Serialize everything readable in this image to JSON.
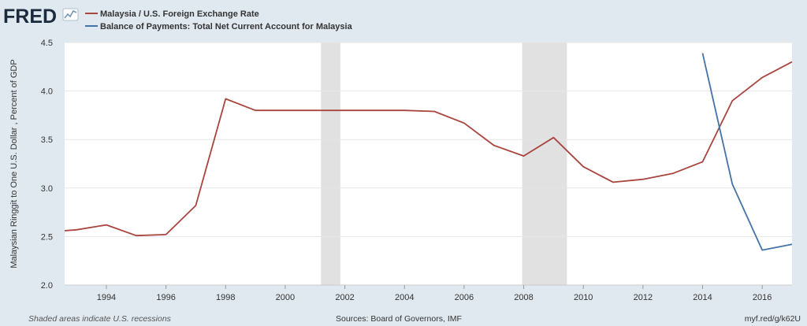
{
  "header": {
    "logo": "FRED",
    "logo_mark": "chart-line-icon",
    "legend": [
      {
        "label": "Malaysia / U.S. Foreign Exchange Rate",
        "color": "#a9443f"
      },
      {
        "label": "Balance of Payments: Total Net Current Account for Malaysia",
        "color": "#4572a7"
      }
    ]
  },
  "footer": {
    "left": "Shaded areas indicate U.S. recessions",
    "center": "Sources: Board of Governors, IMF",
    "right": "myf.red/g/k62U"
  },
  "chart_data": {
    "type": "line",
    "ylabel": "Malaysian Ringgit to One U.S. Dollar , Percent of GDP",
    "xlim": [
      1992.6,
      2017.0
    ],
    "ylim": [
      2.0,
      4.5
    ],
    "yticks": [
      "2.0",
      "2.5",
      "3.0",
      "3.5",
      "4.0",
      "4.5"
    ],
    "xticks": [
      "1994",
      "1996",
      "1998",
      "2000",
      "2002",
      "2004",
      "2006",
      "2008",
      "2010",
      "2012",
      "2014",
      "2016"
    ],
    "grid": true,
    "recessions": [
      [
        2001.2,
        2001.85
      ],
      [
        2007.95,
        2009.45
      ]
    ],
    "series": [
      {
        "name": "Malaysia / U.S. Foreign Exchange Rate",
        "color": "#a9443f",
        "x": [
          1992.6,
          1993,
          1994,
          1995,
          1996,
          1997,
          1998,
          1999,
          2000,
          2001,
          2002,
          2003,
          2004,
          2005,
          2006,
          2007,
          2008,
          2009,
          2010,
          2011,
          2012,
          2013,
          2014,
          2015,
          2016,
          2017
        ],
        "values": [
          2.56,
          2.57,
          2.62,
          2.51,
          2.52,
          2.82,
          3.92,
          3.8,
          3.8,
          3.8,
          3.8,
          3.8,
          3.8,
          3.79,
          3.67,
          3.44,
          3.33,
          3.52,
          3.22,
          3.06,
          3.09,
          3.15,
          3.27,
          3.9,
          4.14,
          4.3
        ]
      },
      {
        "name": "Balance of Payments: Total Net Current Account for Malaysia",
        "color": "#4572a7",
        "x": [
          2014,
          2015,
          2016,
          2017
        ],
        "values": [
          4.39,
          3.04,
          2.36,
          2.42
        ]
      }
    ]
  }
}
